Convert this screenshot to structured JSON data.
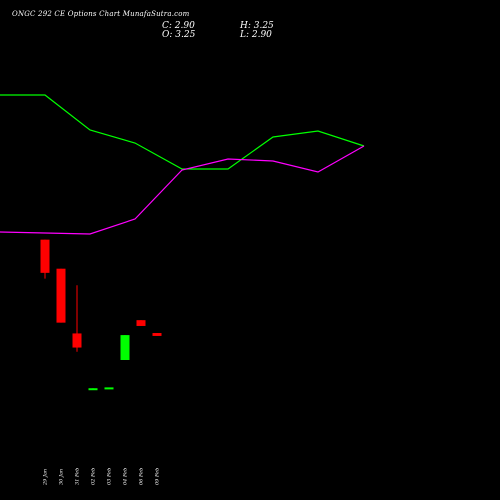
{
  "title": "ONGC 292 CE Options Chart MunafaSutra.com",
  "ohlc": {
    "c": "C: 2.90",
    "h": "H: 3.25",
    "o": "O: 3.25",
    "l": "L: 2.90"
  },
  "chart_data": {
    "type": "candlestick",
    "x_labels": [
      "29 Jan",
      "30 Jan",
      "31 Feb",
      "02 Feb",
      "03 Feb",
      "04 Feb",
      "06 Feb",
      "09 Feb"
    ],
    "candles": [
      {
        "label": "29 Jan",
        "open": 14.5,
        "high": 14.5,
        "low": 9.8,
        "close": 10.5
      },
      {
        "label": "30 Jan",
        "open": 11.0,
        "high": 11.0,
        "low": 4.5,
        "close": 4.5
      },
      {
        "label": "31 Feb",
        "open": 3.2,
        "high": 9.0,
        "low": 1.0,
        "close": 1.5
      },
      {
        "label": "02 Feb",
        "open": -3.6,
        "high": -3.4,
        "low": -3.6,
        "close": -3.4
      },
      {
        "label": "03 Feb",
        "open": -3.3,
        "high": -3.3,
        "low": -3.3,
        "close": -3.3
      },
      {
        "label": "04 Feb",
        "open": 0.0,
        "high": 3.0,
        "low": 0.0,
        "close": 3.0
      },
      {
        "label": "06 Feb",
        "open": 4.8,
        "high": 4.8,
        "low": 4.1,
        "close": 4.1
      },
      {
        "label": "09 Feb",
        "open": 3.25,
        "high": 3.25,
        "low": 2.9,
        "close": 2.9
      }
    ],
    "lines": [
      {
        "color": "#00ff00",
        "values": [
          95,
          95,
          130,
          143,
          169,
          169,
          137,
          131,
          146
        ]
      },
      {
        "color": "#ff00ff",
        "values": [
          232,
          233,
          234,
          219,
          170,
          159,
          161,
          172,
          146
        ]
      }
    ],
    "colors": {
      "up": "#00ff00",
      "down": "#ff0000",
      "background": "#000000",
      "text": "#ffffff"
    }
  }
}
